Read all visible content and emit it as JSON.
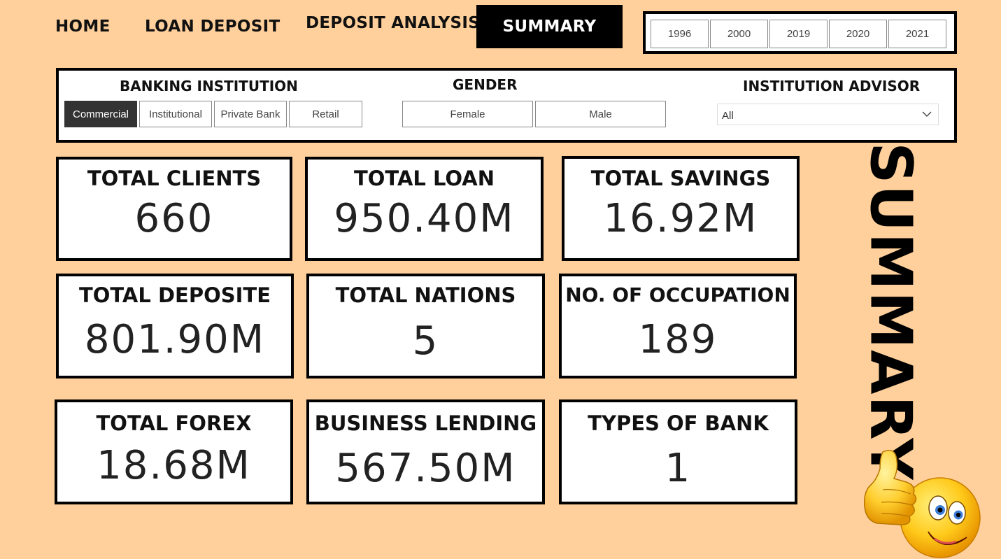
{
  "nav": {
    "home": "HOME",
    "loan_deposit": "LOAN DEPOSIT",
    "deposit_analysis": "DEPOSIT ANALYSIS",
    "summary": "SUMMARY",
    "active": "SUMMARY"
  },
  "years": [
    "1996",
    "2000",
    "2019",
    "2020",
    "2021"
  ],
  "filters": {
    "banking_institution": {
      "title": "BANKING INSTITUTION",
      "options": [
        "Commercial",
        "Institutional",
        "Private Bank",
        "Retail"
      ],
      "selected": "Commercial"
    },
    "gender": {
      "title": "GENDER",
      "options": [
        "Female",
        "Male"
      ]
    },
    "institution_advisor": {
      "title": "INSTITUTION ADVISOR",
      "value": "All"
    }
  },
  "cards": {
    "total_clients": {
      "title": "TOTAL CLIENTS",
      "value": "660"
    },
    "total_loan": {
      "title": "TOTAL LOAN",
      "value": "950.40M"
    },
    "total_savings": {
      "title": "TOTAL SAVINGS",
      "value": "16.92M"
    },
    "total_deposite": {
      "title": "TOTAL DEPOSITE",
      "value": "801.90M"
    },
    "total_nations": {
      "title": "TOTAL NATIONS",
      "value": "5"
    },
    "no_of_occupation": {
      "title": "NO. OF OCCUPATION",
      "value": "189"
    },
    "total_forex": {
      "title": "TOTAL FOREX",
      "value": "18.68M"
    },
    "business_lending": {
      "title": "BUSINESS LENDING",
      "value": "567.50M"
    },
    "types_of_bank": {
      "title": "TYPES OF BANK",
      "value": "1"
    }
  },
  "side_title": "SUMMARY",
  "icons": {
    "dropdown": "chevron-down-icon",
    "emoji": "thumbs-up-smiley-icon"
  },
  "colors": {
    "background": "#FFD09B",
    "active_tab": "#000000",
    "selected_slicer": "#333333"
  }
}
